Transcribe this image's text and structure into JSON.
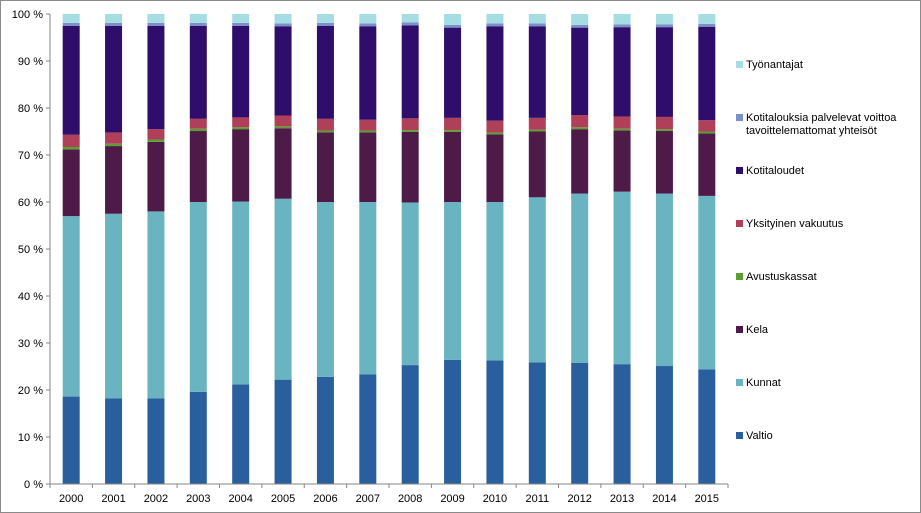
{
  "chart_data": {
    "type": "bar",
    "stacked": true,
    "normalized": true,
    "categories": [
      "2000",
      "2001",
      "2002",
      "2003",
      "2004",
      "2005",
      "2006",
      "2007",
      "2008",
      "2009",
      "2010",
      "2011",
      "2012",
      "2013",
      "2014",
      "2015"
    ],
    "ylim": [
      0,
      100
    ],
    "yticks": [
      "0 %",
      "10 %",
      "20 %",
      "30 %",
      "40 %",
      "50 %",
      "60 %",
      "70 %",
      "80 %",
      "90 %",
      "100 %"
    ],
    "grid": false,
    "legend_position": "right",
    "series": [
      {
        "name": "Valtio",
        "color": "#2a5f9e",
        "values": [
          18.6,
          18.2,
          18.2,
          19.6,
          21.2,
          22.2,
          22.8,
          23.3,
          25.3,
          26.4,
          26.3,
          25.9,
          25.8,
          25.5,
          25.1,
          24.4
        ]
      },
      {
        "name": "Kunnat",
        "color": "#6ab3c0",
        "values": [
          38.4,
          39.3,
          39.8,
          40.4,
          38.9,
          38.5,
          37.2,
          36.7,
          34.6,
          33.6,
          33.7,
          35.1,
          36.0,
          36.7,
          36.7,
          36.9
        ]
      },
      {
        "name": "Kela",
        "color": "#4e1a48",
        "values": [
          14.2,
          14.4,
          14.8,
          15.1,
          15.4,
          15.0,
          14.8,
          14.8,
          15.0,
          14.9,
          14.4,
          14.0,
          13.7,
          13.0,
          13.3,
          13.3
        ]
      },
      {
        "name": "Avustuskassat",
        "color": "#5aa030",
        "values": [
          0.5,
          0.5,
          0.5,
          0.5,
          0.4,
          0.4,
          0.4,
          0.4,
          0.4,
          0.4,
          0.4,
          0.4,
          0.4,
          0.4,
          0.4,
          0.4
        ]
      },
      {
        "name": "Yksityinen vakuutus",
        "color": "#b0405a",
        "values": [
          2.6,
          2.4,
          2.2,
          2.1,
          2.1,
          2.3,
          2.5,
          2.3,
          2.5,
          2.6,
          2.5,
          2.5,
          2.6,
          2.6,
          2.6,
          2.4
        ]
      },
      {
        "name": "Kotitaloudet",
        "color": "#2e0e6a",
        "values": [
          23.2,
          22.7,
          22.0,
          19.8,
          19.5,
          19.0,
          19.8,
          19.9,
          19.8,
          19.2,
          20.1,
          19.5,
          18.6,
          19.0,
          19.1,
          19.9
        ]
      },
      {
        "name": "Kotitalouksia palvelevat voittoa tavoittelemattomat yhteisöt",
        "color": "#7b8fc9",
        "values": [
          0.6,
          0.6,
          0.6,
          0.6,
          0.6,
          0.6,
          0.6,
          0.6,
          0.6,
          0.6,
          0.6,
          0.6,
          0.6,
          0.6,
          0.6,
          0.6
        ]
      },
      {
        "name": "Työnantajat",
        "color": "#a6dde2",
        "values": [
          1.9,
          1.9,
          1.9,
          1.9,
          1.9,
          2.0,
          1.9,
          2.0,
          1.8,
          2.3,
          2.0,
          2.0,
          2.3,
          2.2,
          2.2,
          2.1
        ]
      }
    ],
    "legend_order": [
      "Työnantajat",
      "Kotitalouksia palvelevat voittoa tavoittelemattomat yhteisöt",
      "Kotitaloudet",
      "Yksityinen vakuutus",
      "Avustuskassat",
      "Kela",
      "Kunnat",
      "Valtio"
    ],
    "legend_labels": {
      "Kotitalouksia palvelevat voittoa tavoittelemattomat yhteisöt": [
        "Kotitalouksia palvelevat voittoa",
        "tavoittelemattomat yhteisöt"
      ]
    }
  }
}
